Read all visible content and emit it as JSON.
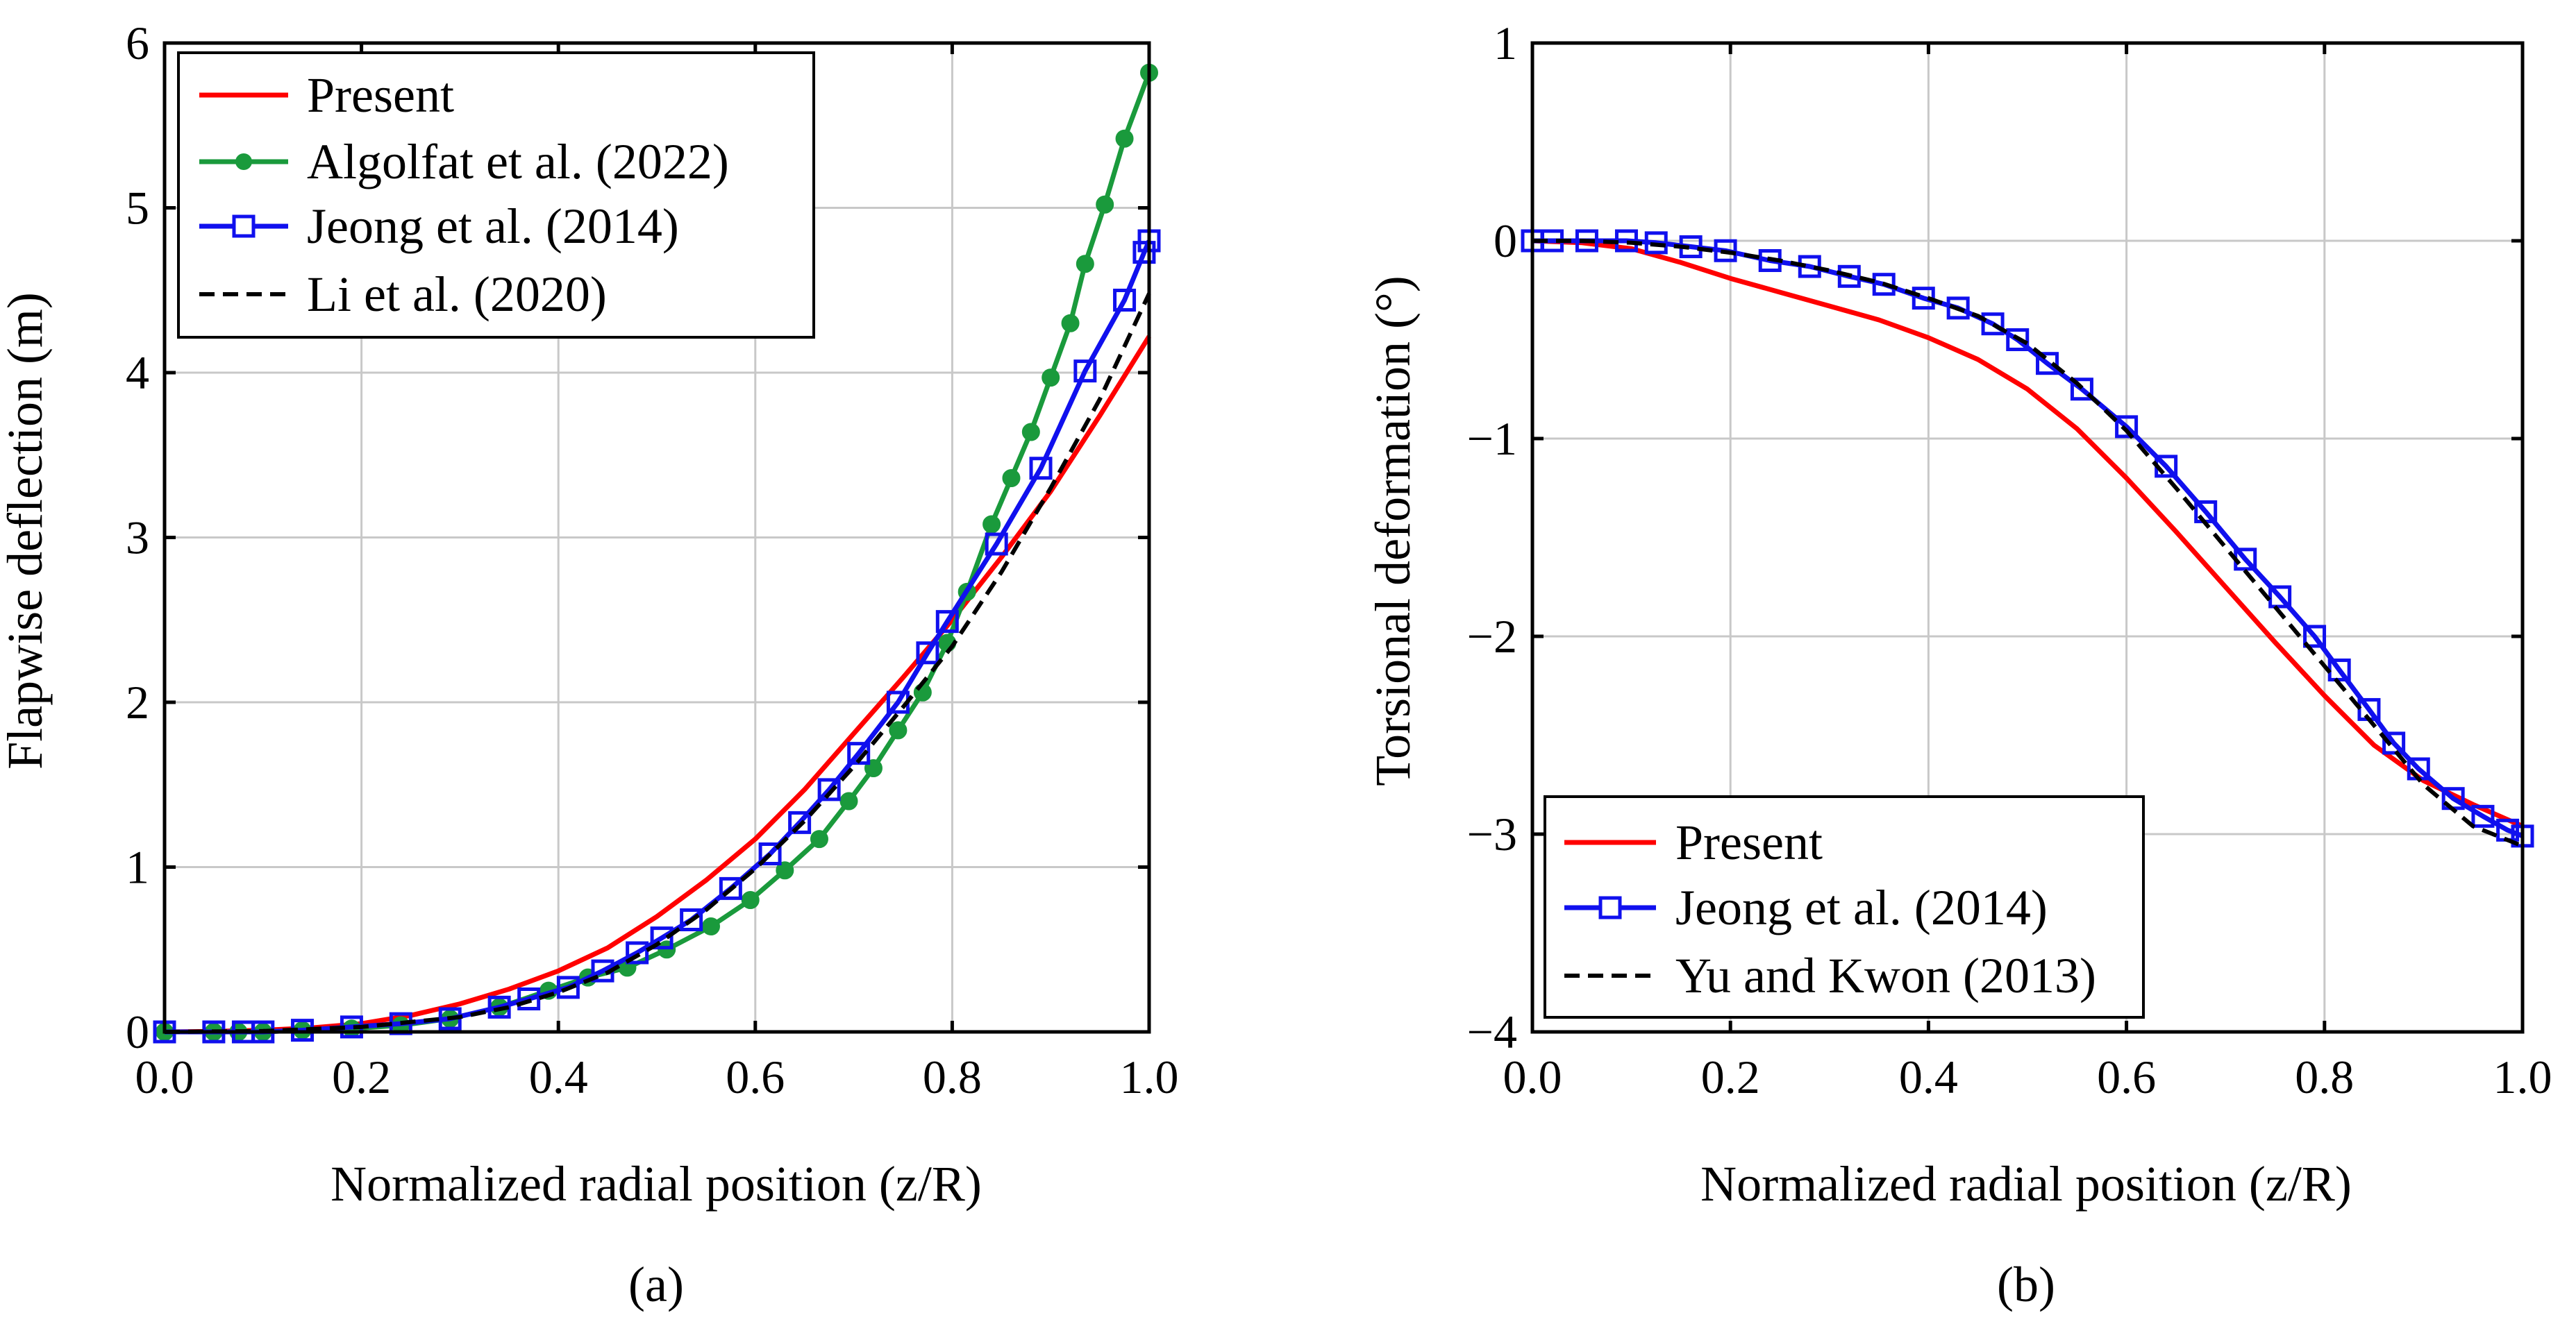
{
  "colors": {
    "present": "#ff0000",
    "algolfat": "#1a9a3c",
    "jeong": "#1010ee",
    "li": "#000000",
    "yu": "#000000",
    "grid": "#c8c8c8"
  },
  "chart_data": [
    {
      "id": "a",
      "type": "line",
      "panel_label": "(a)",
      "title": "",
      "xlabel": "Normalized radial position (z/R)",
      "ylabel": "Flapwise deflection (m)",
      "xlim": [
        0,
        1
      ],
      "ylim": [
        0,
        6
      ],
      "xticks": [
        0,
        0.2,
        0.4,
        0.6,
        0.8,
        1.0
      ],
      "xtick_labels": [
        "0.0",
        "0.2",
        "0.4",
        "0.6",
        "0.8",
        "1.0"
      ],
      "yticks": [
        0,
        1,
        2,
        3,
        4,
        5,
        6
      ],
      "ytick_labels": [
        "0",
        "1",
        "2",
        "3",
        "4",
        "5",
        "6"
      ],
      "legend_position": "top-left",
      "series": [
        {
          "name": "Present",
          "color_key": "present",
          "marker": "none",
          "dash": "solid",
          "x": [
            0,
            0.05,
            0.1,
            0.15,
            0.2,
            0.25,
            0.3,
            0.35,
            0.4,
            0.45,
            0.5,
            0.55,
            0.6,
            0.65,
            0.7,
            0.75,
            0.8,
            0.85,
            0.9,
            0.95,
            1.0
          ],
          "y": [
            0,
            0.003,
            0.01,
            0.025,
            0.05,
            0.1,
            0.17,
            0.26,
            0.37,
            0.51,
            0.7,
            0.92,
            1.17,
            1.47,
            1.81,
            2.15,
            2.5,
            2.88,
            3.28,
            3.74,
            4.22
          ]
        },
        {
          "name": "Algolfat et al. (2022)",
          "color_key": "algolfat",
          "marker": "circle",
          "dash": "solid",
          "x": [
            0,
            0.05,
            0.075,
            0.1,
            0.14,
            0.19,
            0.24,
            0.29,
            0.34,
            0.39,
            0.43,
            0.47,
            0.51,
            0.555,
            0.595,
            0.63,
            0.665,
            0.695,
            0.72,
            0.745,
            0.77,
            0.795,
            0.815,
            0.84,
            0.86,
            0.88,
            0.9,
            0.92,
            0.935,
            0.955,
            0.975,
            1.0
          ],
          "y": [
            0,
            0,
            0,
            0,
            0.01,
            0.02,
            0.04,
            0.08,
            0.15,
            0.25,
            0.33,
            0.39,
            0.5,
            0.64,
            0.8,
            0.98,
            1.17,
            1.4,
            1.6,
            1.83,
            2.06,
            2.36,
            2.67,
            3.08,
            3.36,
            3.64,
            3.97,
            4.3,
            4.66,
            5.02,
            5.42,
            5.82
          ]
        },
        {
          "name": "Jeong et al. (2014)",
          "color_key": "jeong",
          "marker": "square",
          "dash": "solid",
          "x": [
            0,
            0.05,
            0.08,
            0.1,
            0.14,
            0.19,
            0.24,
            0.29,
            0.34,
            0.37,
            0.41,
            0.445,
            0.48,
            0.505,
            0.535,
            0.575,
            0.615,
            0.645,
            0.675,
            0.705,
            0.745,
            0.775,
            0.795,
            0.845,
            0.89,
            0.935,
            0.975,
            0.995,
            1.0
          ],
          "y": [
            0,
            0,
            0,
            0,
            0.01,
            0.03,
            0.05,
            0.08,
            0.15,
            0.2,
            0.27,
            0.37,
            0.48,
            0.57,
            0.68,
            0.87,
            1.08,
            1.27,
            1.47,
            1.69,
            2.0,
            2.3,
            2.49,
            2.96,
            3.42,
            4.01,
            4.44,
            4.73,
            4.8
          ]
        },
        {
          "name": "Li et al. (2020)",
          "color_key": "li",
          "marker": "none",
          "dash": "dashed",
          "x": [
            0,
            0.1,
            0.2,
            0.3,
            0.35,
            0.4,
            0.45,
            0.5,
            0.55,
            0.6,
            0.65,
            0.7,
            0.75,
            0.8,
            0.85,
            0.9,
            0.95,
            1.0
          ],
          "y": [
            0,
            0.005,
            0.03,
            0.09,
            0.15,
            0.24,
            0.36,
            0.53,
            0.74,
            0.99,
            1.28,
            1.61,
            1.97,
            2.34,
            2.79,
            3.3,
            3.84,
            4.48
          ]
        }
      ]
    },
    {
      "id": "b",
      "type": "line",
      "panel_label": "(b)",
      "title": "",
      "xlabel": "Normalized radial position (z/R)",
      "ylabel": "Torsional deformation (°)",
      "xlim": [
        0,
        1
      ],
      "ylim": [
        -4,
        1
      ],
      "xticks": [
        0,
        0.2,
        0.4,
        0.6,
        0.8,
        1.0
      ],
      "xtick_labels": [
        "0.0",
        "0.2",
        "0.4",
        "0.6",
        "0.8",
        "1.0"
      ],
      "yticks": [
        -4,
        -3,
        -2,
        -1,
        0,
        1
      ],
      "ytick_labels": [
        "-4",
        "-3",
        "-2",
        "-1",
        "0",
        "1"
      ],
      "legend_position": "bottom-left",
      "series": [
        {
          "name": "Present",
          "color_key": "present",
          "marker": "none",
          "dash": "solid",
          "x": [
            0,
            0.05,
            0.1,
            0.15,
            0.2,
            0.25,
            0.3,
            0.35,
            0.4,
            0.45,
            0.5,
            0.55,
            0.6,
            0.65,
            0.7,
            0.75,
            0.8,
            0.85,
            0.9,
            0.95,
            1.0
          ],
          "y": [
            0,
            -0.01,
            -0.04,
            -0.11,
            -0.19,
            -0.26,
            -0.33,
            -0.4,
            -0.49,
            -0.6,
            -0.75,
            -0.95,
            -1.2,
            -1.47,
            -1.75,
            -2.03,
            -2.3,
            -2.55,
            -2.73,
            -2.85,
            -2.96
          ]
        },
        {
          "name": "Jeong et al. (2014)",
          "color_key": "jeong",
          "marker": "square",
          "dash": "solid",
          "x": [
            0,
            0.02,
            0.055,
            0.095,
            0.125,
            0.16,
            0.195,
            0.24,
            0.28,
            0.32,
            0.355,
            0.395,
            0.43,
            0.465,
            0.49,
            0.52,
            0.555,
            0.6,
            0.64,
            0.68,
            0.72,
            0.755,
            0.79,
            0.815,
            0.845,
            0.87,
            0.895,
            0.93,
            0.96,
            0.985,
            1.0
          ],
          "y": [
            0,
            0,
            0,
            0,
            -0.01,
            -0.03,
            -0.05,
            -0.1,
            -0.13,
            -0.18,
            -0.22,
            -0.29,
            -0.34,
            -0.42,
            -0.5,
            -0.62,
            -0.75,
            -0.94,
            -1.14,
            -1.37,
            -1.61,
            -1.8,
            -2.0,
            -2.17,
            -2.37,
            -2.54,
            -2.67,
            -2.82,
            -2.91,
            -2.98,
            -3.01
          ]
        },
        {
          "name": "Yu and Kwon (2013)",
          "color_key": "yu",
          "marker": "none",
          "dash": "dashed",
          "x": [
            0,
            0.05,
            0.1,
            0.15,
            0.2,
            0.25,
            0.3,
            0.35,
            0.4,
            0.45,
            0.5,
            0.55,
            0.6,
            0.65,
            0.7,
            0.75,
            0.8,
            0.85,
            0.9,
            0.95,
            1.0
          ],
          "y": [
            0,
            0,
            -0.01,
            -0.03,
            -0.06,
            -0.1,
            -0.15,
            -0.21,
            -0.29,
            -0.38,
            -0.52,
            -0.72,
            -0.96,
            -1.25,
            -1.55,
            -1.85,
            -2.15,
            -2.45,
            -2.75,
            -2.96,
            -3.06
          ]
        }
      ]
    }
  ]
}
